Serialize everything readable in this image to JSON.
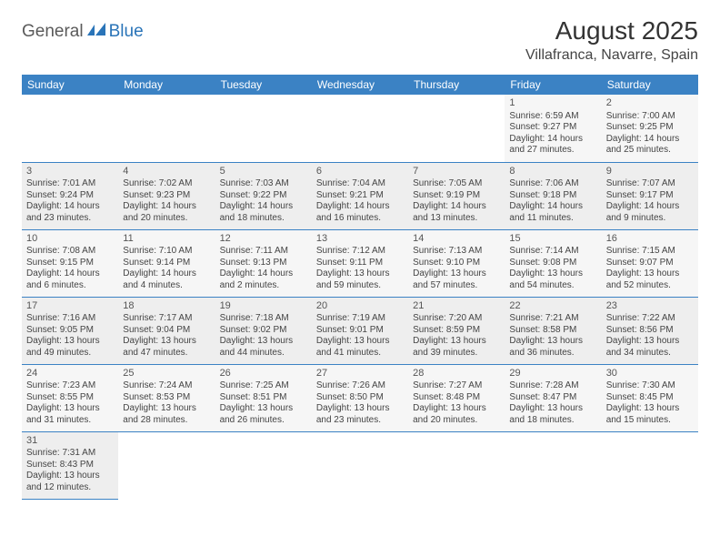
{
  "logo": {
    "part1": "General",
    "part2": "Blue"
  },
  "title": "August 2025",
  "location": "Villafranca, Navarre, Spain",
  "colors": {
    "header_bg": "#3b82c4",
    "header_text": "#ffffff",
    "row_bg_a": "#eeeeee",
    "row_bg_b": "#f6f6f6",
    "border": "#3b82c4",
    "logo_gray": "#5a5a5a",
    "logo_blue": "#2a74b8"
  },
  "day_headers": [
    "Sunday",
    "Monday",
    "Tuesday",
    "Wednesday",
    "Thursday",
    "Friday",
    "Saturday"
  ],
  "weeks": [
    [
      null,
      null,
      null,
      null,
      null,
      {
        "d": "1",
        "sr": "6:59 AM",
        "ss": "9:27 PM",
        "dl": "14 hours and 27 minutes."
      },
      {
        "d": "2",
        "sr": "7:00 AM",
        "ss": "9:25 PM",
        "dl": "14 hours and 25 minutes."
      }
    ],
    [
      {
        "d": "3",
        "sr": "7:01 AM",
        "ss": "9:24 PM",
        "dl": "14 hours and 23 minutes."
      },
      {
        "d": "4",
        "sr": "7:02 AM",
        "ss": "9:23 PM",
        "dl": "14 hours and 20 minutes."
      },
      {
        "d": "5",
        "sr": "7:03 AM",
        "ss": "9:22 PM",
        "dl": "14 hours and 18 minutes."
      },
      {
        "d": "6",
        "sr": "7:04 AM",
        "ss": "9:21 PM",
        "dl": "14 hours and 16 minutes."
      },
      {
        "d": "7",
        "sr": "7:05 AM",
        "ss": "9:19 PM",
        "dl": "14 hours and 13 minutes."
      },
      {
        "d": "8",
        "sr": "7:06 AM",
        "ss": "9:18 PM",
        "dl": "14 hours and 11 minutes."
      },
      {
        "d": "9",
        "sr": "7:07 AM",
        "ss": "9:17 PM",
        "dl": "14 hours and 9 minutes."
      }
    ],
    [
      {
        "d": "10",
        "sr": "7:08 AM",
        "ss": "9:15 PM",
        "dl": "14 hours and 6 minutes."
      },
      {
        "d": "11",
        "sr": "7:10 AM",
        "ss": "9:14 PM",
        "dl": "14 hours and 4 minutes."
      },
      {
        "d": "12",
        "sr": "7:11 AM",
        "ss": "9:13 PM",
        "dl": "14 hours and 2 minutes."
      },
      {
        "d": "13",
        "sr": "7:12 AM",
        "ss": "9:11 PM",
        "dl": "13 hours and 59 minutes."
      },
      {
        "d": "14",
        "sr": "7:13 AM",
        "ss": "9:10 PM",
        "dl": "13 hours and 57 minutes."
      },
      {
        "d": "15",
        "sr": "7:14 AM",
        "ss": "9:08 PM",
        "dl": "13 hours and 54 minutes."
      },
      {
        "d": "16",
        "sr": "7:15 AM",
        "ss": "9:07 PM",
        "dl": "13 hours and 52 minutes."
      }
    ],
    [
      {
        "d": "17",
        "sr": "7:16 AM",
        "ss": "9:05 PM",
        "dl": "13 hours and 49 minutes."
      },
      {
        "d": "18",
        "sr": "7:17 AM",
        "ss": "9:04 PM",
        "dl": "13 hours and 47 minutes."
      },
      {
        "d": "19",
        "sr": "7:18 AM",
        "ss": "9:02 PM",
        "dl": "13 hours and 44 minutes."
      },
      {
        "d": "20",
        "sr": "7:19 AM",
        "ss": "9:01 PM",
        "dl": "13 hours and 41 minutes."
      },
      {
        "d": "21",
        "sr": "7:20 AM",
        "ss": "8:59 PM",
        "dl": "13 hours and 39 minutes."
      },
      {
        "d": "22",
        "sr": "7:21 AM",
        "ss": "8:58 PM",
        "dl": "13 hours and 36 minutes."
      },
      {
        "d": "23",
        "sr": "7:22 AM",
        "ss": "8:56 PM",
        "dl": "13 hours and 34 minutes."
      }
    ],
    [
      {
        "d": "24",
        "sr": "7:23 AM",
        "ss": "8:55 PM",
        "dl": "13 hours and 31 minutes."
      },
      {
        "d": "25",
        "sr": "7:24 AM",
        "ss": "8:53 PM",
        "dl": "13 hours and 28 minutes."
      },
      {
        "d": "26",
        "sr": "7:25 AM",
        "ss": "8:51 PM",
        "dl": "13 hours and 26 minutes."
      },
      {
        "d": "27",
        "sr": "7:26 AM",
        "ss": "8:50 PM",
        "dl": "13 hours and 23 minutes."
      },
      {
        "d": "28",
        "sr": "7:27 AM",
        "ss": "8:48 PM",
        "dl": "13 hours and 20 minutes."
      },
      {
        "d": "29",
        "sr": "7:28 AM",
        "ss": "8:47 PM",
        "dl": "13 hours and 18 minutes."
      },
      {
        "d": "30",
        "sr": "7:30 AM",
        "ss": "8:45 PM",
        "dl": "13 hours and 15 minutes."
      }
    ],
    [
      {
        "d": "31",
        "sr": "7:31 AM",
        "ss": "8:43 PM",
        "dl": "13 hours and 12 minutes."
      },
      null,
      null,
      null,
      null,
      null,
      null
    ]
  ],
  "labels": {
    "sunrise": "Sunrise:",
    "sunset": "Sunset:",
    "daylight": "Daylight:"
  }
}
